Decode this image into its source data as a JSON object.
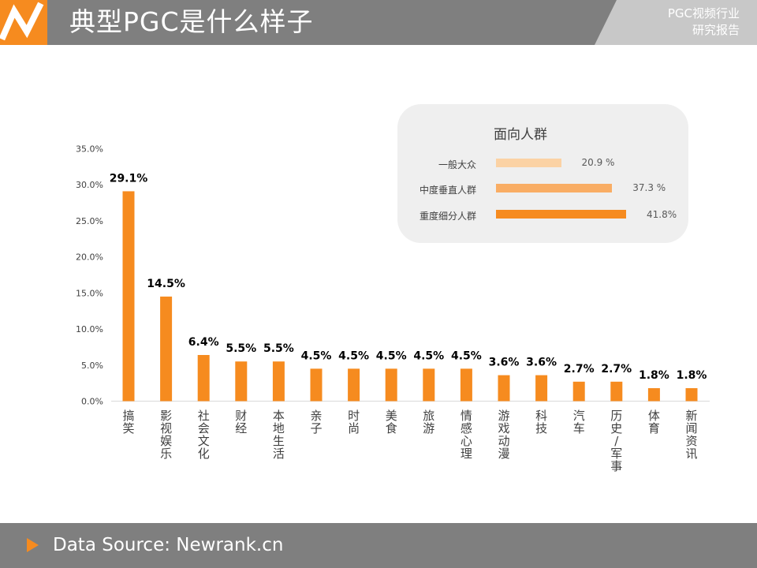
{
  "header": {
    "title": "典型PGC是什么样子",
    "report_line1": "PGC视频行业",
    "report_line2": "研究报告"
  },
  "legend_panel": {
    "title": "面向人群",
    "items": [
      {
        "label": "一般大众",
        "value": 20.9,
        "display": "20.9 %",
        "color": "#fbd2a4"
      },
      {
        "label": "中度垂直人群",
        "value": 37.3,
        "display": "37.3 %",
        "color": "#f9ad64"
      },
      {
        "label": "重度细分人群",
        "value": 41.8,
        "display": "41.8%",
        "color": "#f68b1f"
      }
    ]
  },
  "chart_data": {
    "type": "bar",
    "categories": [
      "搞笑",
      "影视娱乐",
      "社会文化",
      "财经",
      "本地生活",
      "亲子",
      "时尚",
      "美食",
      "旅游",
      "情感心理",
      "游戏动漫",
      "科技",
      "汽车",
      "历史/军事",
      "体育",
      "新闻资讯"
    ],
    "values": [
      29.1,
      14.5,
      6.4,
      5.5,
      5.5,
      4.5,
      4.5,
      4.5,
      4.5,
      4.5,
      3.6,
      3.6,
      2.7,
      2.7,
      1.8,
      1.8
    ],
    "data_labels": [
      "29.1%",
      "14.5%",
      "6.4%",
      "5.5%",
      "5.5%",
      "4.5%",
      "4.5%",
      "4.5%",
      "4.5%",
      "4.5%",
      "3.6%",
      "3.6%",
      "2.7%",
      "2.7%",
      "1.8%",
      "1.8%"
    ],
    "ylim": [
      0,
      35
    ],
    "yticks": [
      "0.0%",
      "5.0%",
      "10.0%",
      "15.0%",
      "20.0%",
      "25.0%",
      "30.0%",
      "35.0%"
    ],
    "bar_color": "#f68b1f",
    "grid": false,
    "title": "",
    "xlabel": "",
    "ylabel": ""
  },
  "footer": {
    "source": "Data Source: Newrank.cn"
  }
}
